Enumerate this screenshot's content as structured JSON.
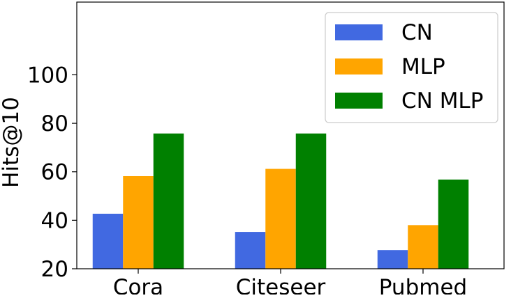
{
  "chart_data": {
    "type": "bar",
    "title": "",
    "xlabel": "",
    "ylabel": "Hits@10",
    "categories": [
      "Cora",
      "Citeseer",
      "Pubmed"
    ],
    "series": [
      {
        "name": "CN",
        "color": "#4169e1",
        "values": [
          42.7,
          35.2,
          27.7
        ]
      },
      {
        "name": "MLP",
        "color": "#ffa500",
        "values": [
          58.2,
          61.2,
          38.0
        ]
      },
      {
        "name": "CN MLP",
        "color": "#008000",
        "values": [
          75.8,
          75.8,
          56.8
        ]
      }
    ],
    "ylim": [
      20,
      130
    ],
    "yticks": [
      20,
      40,
      60,
      80,
      100
    ],
    "grid": false,
    "legend_position": "top-right"
  }
}
